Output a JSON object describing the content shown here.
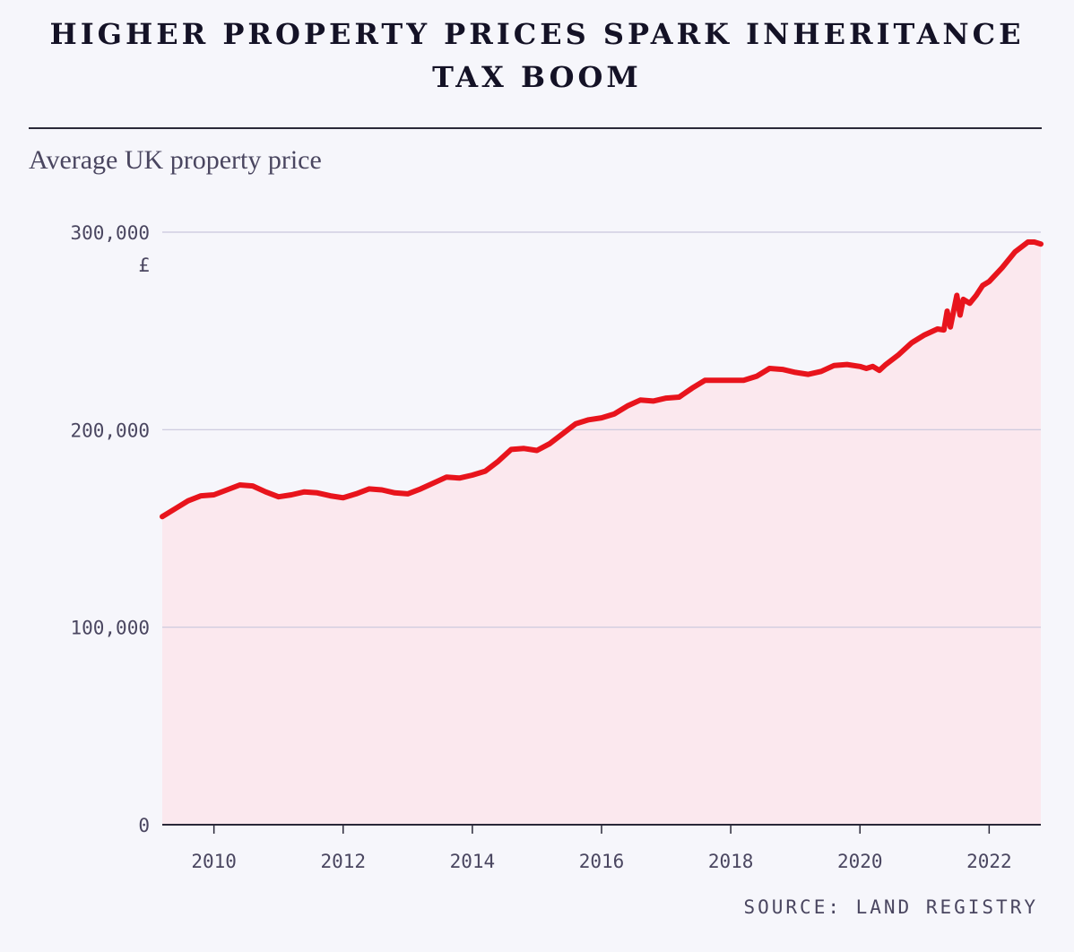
{
  "title_line1": "HIGHER PROPERTY PRICES SPARK INHERITANCE",
  "title_line2": "TAX BOOM",
  "subtitle": "Average UK property price",
  "source": "SOURCE: LAND REGISTRY",
  "chart_data": {
    "type": "area",
    "title": "HIGHER PROPERTY PRICES SPARK INHERITANCE TAX BOOM",
    "subtitle": "Average UK property price",
    "ylabel": "£",
    "xlabel": "",
    "xlim": [
      2009.2,
      2022.8
    ],
    "ylim": [
      0,
      300000
    ],
    "yticks": [
      0,
      100000,
      200000,
      300000
    ],
    "ytick_labels": [
      "0",
      "100,000",
      "200,000",
      "300,000"
    ],
    "y_unit_label": "£",
    "xticks": [
      2010,
      2012,
      2014,
      2016,
      2018,
      2020,
      2022
    ],
    "xtick_labels": [
      "2010",
      "2012",
      "2014",
      "2016",
      "2018",
      "2020",
      "2022"
    ],
    "grid": "horizontal",
    "line_color": "#e8141c",
    "fill_color": "#fbe8ee",
    "series": [
      {
        "name": "Average UK property price",
        "x": [
          2009.2,
          2009.4,
          2009.6,
          2009.8,
          2010.0,
          2010.2,
          2010.4,
          2010.6,
          2010.8,
          2011.0,
          2011.2,
          2011.4,
          2011.6,
          2011.8,
          2012.0,
          2012.2,
          2012.4,
          2012.6,
          2012.8,
          2013.0,
          2013.2,
          2013.4,
          2013.6,
          2013.8,
          2014.0,
          2014.2,
          2014.4,
          2014.6,
          2014.8,
          2015.0,
          2015.2,
          2015.4,
          2015.6,
          2015.8,
          2016.0,
          2016.2,
          2016.4,
          2016.6,
          2016.8,
          2017.0,
          2017.2,
          2017.4,
          2017.6,
          2017.8,
          2018.0,
          2018.2,
          2018.4,
          2018.6,
          2018.8,
          2019.0,
          2019.2,
          2019.4,
          2019.6,
          2019.8,
          2020.0,
          2020.1,
          2020.2,
          2020.3,
          2020.4,
          2020.6,
          2020.8,
          2021.0,
          2021.2,
          2021.3,
          2021.35,
          2021.4,
          2021.5,
          2021.55,
          2021.6,
          2021.7,
          2021.8,
          2021.9,
          2022.0,
          2022.2,
          2022.4,
          2022.6,
          2022.7,
          2022.8
        ],
        "y": [
          156000,
          160000,
          164000,
          166500,
          167000,
          169500,
          172000,
          171500,
          168500,
          166000,
          167000,
          168500,
          168000,
          166500,
          165500,
          167500,
          170000,
          169500,
          168000,
          167500,
          170000,
          173000,
          176000,
          175500,
          177000,
          179000,
          184000,
          190000,
          190500,
          189500,
          193000,
          198000,
          203000,
          205000,
          206000,
          208000,
          212000,
          215000,
          214500,
          216000,
          216500,
          221000,
          225000,
          225000,
          225000,
          225000,
          227000,
          231000,
          230500,
          229000,
          228000,
          229500,
          232500,
          233000,
          232000,
          231000,
          232000,
          230000,
          233000,
          238000,
          244000,
          248000,
          251000,
          250500,
          260000,
          252000,
          268000,
          258000,
          266000,
          264000,
          268000,
          273000,
          275000,
          282000,
          290000,
          295000,
          295000,
          294000
        ]
      }
    ]
  }
}
